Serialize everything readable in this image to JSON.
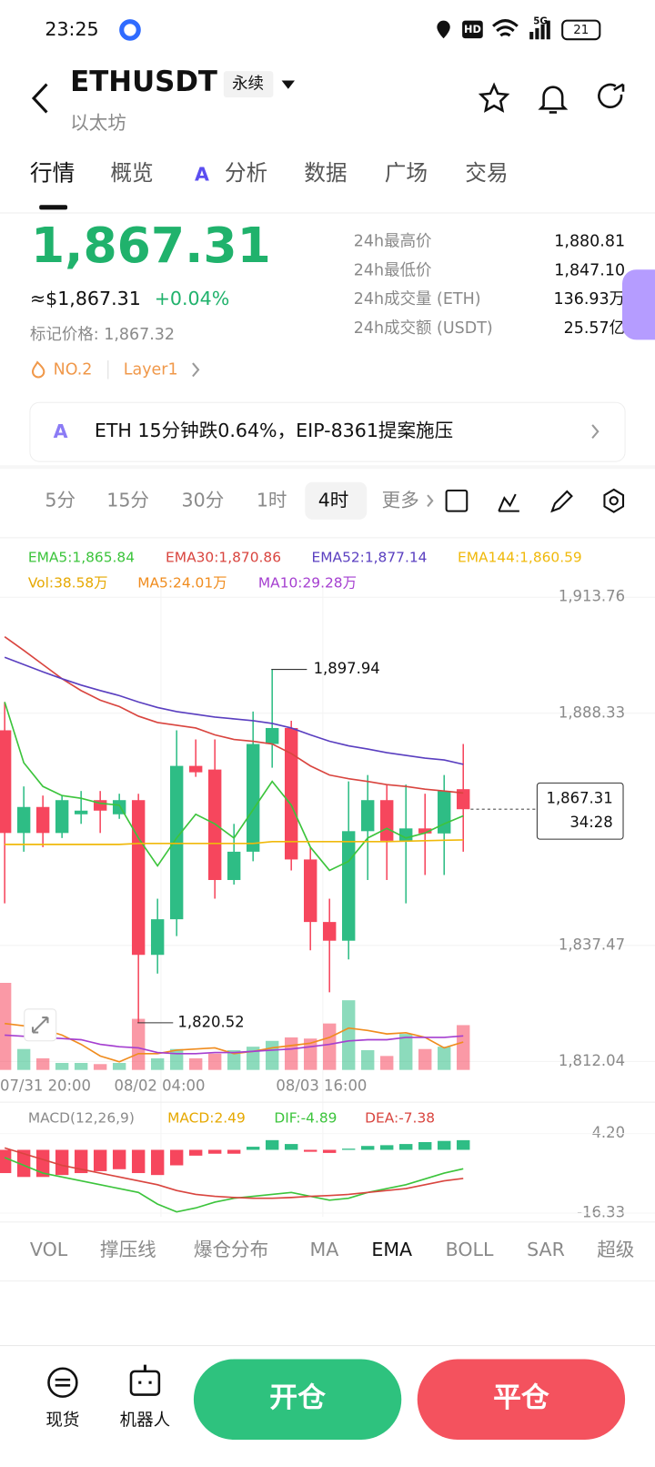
{
  "status_bar": {
    "time": "23:25",
    "hd": "HD",
    "network": "5G",
    "battery": "21"
  },
  "header": {
    "symbol": "ETHUSDT",
    "contract": "永续",
    "name": "以太坊"
  },
  "tabs": [
    "行情",
    "概览",
    "分析",
    "数据",
    "广场",
    "交易"
  ],
  "price": {
    "last": "1,867.31",
    "usd": "≈$1,867.31",
    "change": "+0.04%",
    "mark_price": "标记价格: 1,867.32",
    "rank": "NO.2",
    "tag": "Layer1"
  },
  "stats": [
    {
      "label": "24h最高价",
      "value": "1,880.81"
    },
    {
      "label": "24h最低价",
      "value": "1,847.10"
    },
    {
      "label": "24h成交量 (ETH)",
      "value": "136.93万"
    },
    {
      "label": "24h成交额 (USDT)",
      "value": "25.57亿"
    }
  ],
  "news": "ETH 15分钟跌0.64%，EIP-8361提案施压",
  "intervals": [
    "5分",
    "15分",
    "30分",
    "1时",
    "4时",
    "更多"
  ],
  "chart_data": {
    "type": "candlestick",
    "up_color": "#2ebd85",
    "down_color": "#f6465d",
    "open": [
      1884.6,
      1862.1,
      1867.8,
      1862.1,
      1866.2,
      1869.3,
      1866.2,
      1869.3,
      1835.4,
      1843.2,
      1876.8,
      1876.0,
      1851.8,
      1858.0,
      1881.6,
      1885.1,
      1856.3,
      1842.6,
      1838.5,
      1862.5,
      1869.3,
      1860.4,
      1863.1,
      1862.0,
      1871.7
    ],
    "high": [
      1890.8,
      1872.3,
      1870.3,
      1870.3,
      1871.3,
      1871.3,
      1870.7,
      1870.7,
      1847.7,
      1884.6,
      1882.6,
      1882.6,
      1864.1,
      1888.7,
      1897.94,
      1886.7,
      1859.0,
      1847.7,
      1873.4,
      1874.8,
      1872.7,
      1872.7,
      1870.7,
      1874.8,
      1881.6
    ],
    "low": [
      1846.7,
      1858.0,
      1859.0,
      1861.0,
      1864.1,
      1862.1,
      1865.2,
      1820.52,
      1831.3,
      1839.5,
      1874.4,
      1847.7,
      1850.8,
      1855.9,
      1876.4,
      1853.9,
      1836.4,
      1827.2,
      1834.4,
      1851.8,
      1851.8,
      1846.7,
      1852.9,
      1852.9,
      1858.0
    ],
    "close": [
      1862.1,
      1867.8,
      1862.1,
      1869.3,
      1867.0,
      1867.0,
      1869.3,
      1835.4,
      1843.2,
      1876.8,
      1875.4,
      1851.8,
      1858.0,
      1881.6,
      1885.1,
      1856.3,
      1842.6,
      1838.5,
      1862.5,
      1869.3,
      1860.4,
      1863.1,
      1862.0,
      1871.3,
      1867.31
    ],
    "series": [
      {
        "legend": "EMA5:1,865.84",
        "color": "#3cc43c",
        "values": [
          1890.8,
          1877.5,
          1872.3,
          1870.3,
          1869.7,
          1868.6,
          1868.2,
          1861.0,
          1854.9,
          1861.0,
          1866.2,
          1864.1,
          1861.0,
          1867.2,
          1873.4,
          1868.2,
          1859.0,
          1853.9,
          1855.9,
          1861.0,
          1863.1,
          1861.0,
          1862.1,
          1864.1,
          1865.84
        ]
      },
      {
        "legend": "EMA30:1,870.86",
        "color": "#d9453f",
        "values": [
          1905.1,
          1902.1,
          1899.0,
          1895.9,
          1893.3,
          1891.2,
          1889.8,
          1887.7,
          1886.3,
          1885.7,
          1885.1,
          1883.6,
          1882.6,
          1882.2,
          1881.6,
          1879.5,
          1876.8,
          1874.8,
          1874.0,
          1873.4,
          1872.7,
          1872.3,
          1871.7,
          1871.3,
          1870.86
        ]
      },
      {
        "legend": "EMA52:1,877.14",
        "color": "#5a3fc0",
        "values": [
          1900.6,
          1899.0,
          1897.4,
          1895.9,
          1894.5,
          1893.3,
          1892.2,
          1890.8,
          1889.6,
          1888.7,
          1888.1,
          1887.5,
          1887.1,
          1886.7,
          1886.1,
          1885.1,
          1883.6,
          1882.2,
          1881.2,
          1880.5,
          1879.7,
          1879.1,
          1878.5,
          1878.1,
          1877.14
        ]
      },
      {
        "legend": "EMA144:1,860.59",
        "color": "#f0b90b",
        "values": [
          1859.6,
          1859.6,
          1859.6,
          1859.6,
          1859.6,
          1859.6,
          1859.6,
          1859.8,
          1859.8,
          1859.8,
          1859.8,
          1859.8,
          1859.8,
          1859.8,
          1860.2,
          1860.2,
          1860.2,
          1860.2,
          1860.2,
          1860.2,
          1860.2,
          1860.3,
          1860.4,
          1860.5,
          1860.59
        ]
      }
    ],
    "ylim": [
      1812.04,
      1913.76
    ],
    "yticks": [
      {
        "value": 1913.76,
        "label": "1,913.76"
      },
      {
        "value": 1888.33,
        "label": "1,888.33"
      },
      {
        "value": 1837.47,
        "label": "1,837.47"
      },
      {
        "value": 1812.04,
        "label": "1,812.04"
      }
    ],
    "xtick_labels": [
      "07/31 20:00",
      "08/02 04:00",
      "08/03 16:00"
    ],
    "high_label": {
      "value": 1897.94,
      "label": "1,897.94"
    },
    "low_label": {
      "value": 1820.52,
      "label": "1,820.52"
    },
    "last_tag": {
      "price": {
        "value": 1867.31,
        "label": "1,867.31"
      },
      "countdown": "34:28"
    },
    "volume": {
      "legend": "Vol:38.58万",
      "color": "#e6a800",
      "values": [
        75,
        18,
        10,
        6,
        6,
        5,
        6,
        44,
        10,
        18,
        10,
        14,
        17,
        20,
        25,
        28,
        27,
        40,
        60,
        17,
        12,
        31,
        18,
        20,
        38.58
      ]
    },
    "volume_ma": [
      {
        "legend": "MA5:24.01万",
        "color": "#f08c1e",
        "values": [
          40,
          38,
          35,
          30,
          22,
          12,
          7,
          14,
          14,
          17,
          18,
          19,
          14,
          16,
          19,
          21,
          23,
          28,
          36,
          34,
          31,
          32,
          28,
          19,
          24.01
        ]
      },
      {
        "legend": "MA10:29.28万",
        "color": "#a53fd0",
        "values": [
          30,
          29,
          28,
          27,
          26,
          22,
          20,
          19,
          15,
          14,
          14,
          15,
          15,
          16,
          17,
          18,
          20,
          22,
          25,
          26,
          26,
          28,
          28,
          28,
          29.28
        ]
      }
    ],
    "macd": {
      "legend": "MACD(12,26,9)",
      "hist": {
        "legend": "MACD:2.49",
        "color": "#e6a800",
        "values": [
          -6,
          -7,
          -7,
          -6.5,
          -6,
          -5.5,
          -5,
          -6,
          -6.5,
          -4,
          -1.5,
          -1,
          -1,
          0.8,
          2.5,
          1.5,
          -0.5,
          -0.8,
          0.3,
          1,
          1.2,
          1.5,
          2,
          2.3,
          2.49
        ]
      },
      "dif": {
        "legend": "DIF:-4.89",
        "color": "#3cc43c",
        "values": [
          -2,
          -4,
          -6,
          -7,
          -8,
          -9,
          -10,
          -11,
          -14,
          -16,
          -15,
          -13.5,
          -12.5,
          -12,
          -11.5,
          -11,
          -12,
          -13,
          -12.5,
          -11,
          -10,
          -9,
          -7.5,
          -6,
          -4.89
        ]
      },
      "dea": {
        "legend": "DEA:-7.38",
        "color": "#d9453f",
        "values": [
          0.5,
          -1,
          -2.5,
          -4,
          -5,
          -6,
          -7,
          -8,
          -9,
          -10.5,
          -11.5,
          -12,
          -12.3,
          -12.5,
          -12.5,
          -12.3,
          -12,
          -11.8,
          -11.5,
          -11,
          -10.5,
          -10,
          -9,
          -8,
          -7.38
        ]
      },
      "ylim": [
        -16.33,
        4.2
      ],
      "yticks": [
        {
          "value": 4.2,
          "label": "4.20"
        },
        -16.33
      ]
    }
  },
  "indicator_tabs": [
    "VOL",
    "撑压线",
    "爆仓分布",
    "MA",
    "EMA",
    "BOLL",
    "SAR",
    "超级"
  ],
  "bottom_bar": {
    "spot": "现货",
    "bot": "机器人",
    "open": "开仓",
    "close": "平仓"
  }
}
